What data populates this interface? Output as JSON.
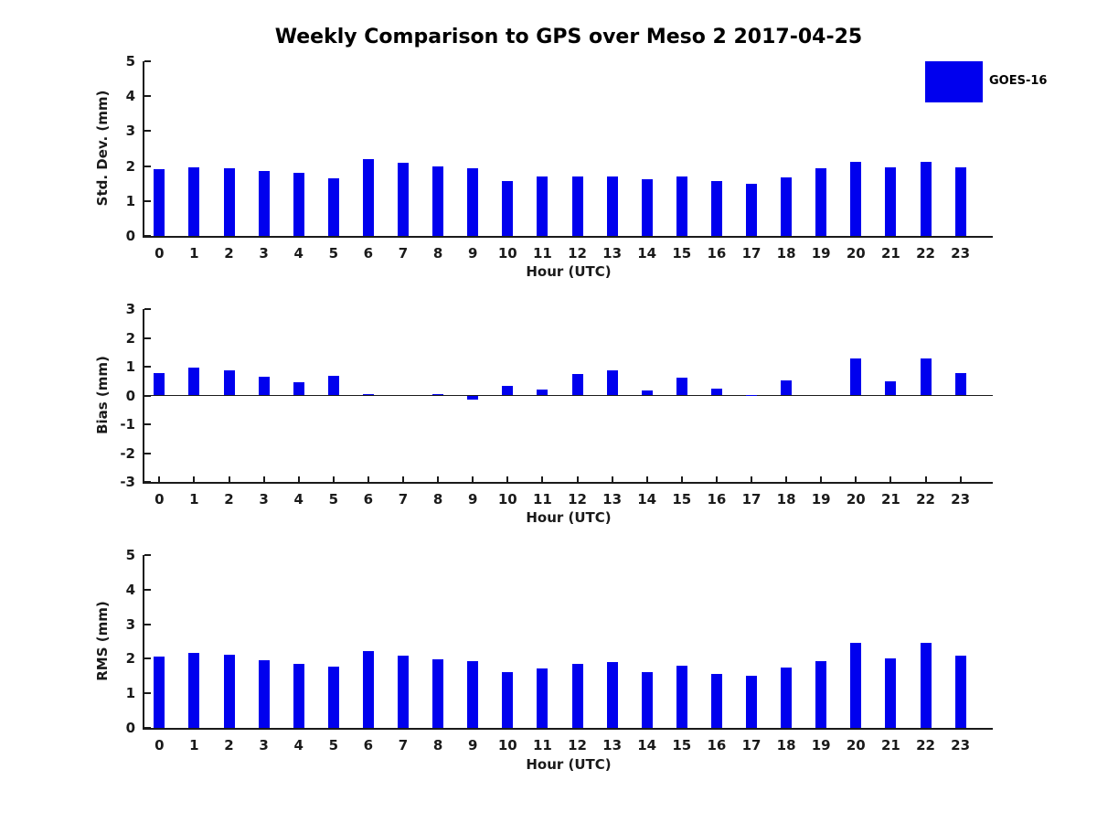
{
  "page": {
    "title": "Weekly Comparison to GPS over Meso 2 2017-04-25"
  },
  "legend": {
    "label": "GOES-16",
    "swatch_color": "#0000EE"
  },
  "chart_data": [
    {
      "id": "std-dev",
      "type": "bar",
      "series_name": "GOES-16",
      "ylabel": "Std. Dev. (mm)",
      "xlabel": "Hour (UTC)",
      "categories": [
        "0",
        "1",
        "2",
        "3",
        "4",
        "5",
        "6",
        "7",
        "8",
        "9",
        "10",
        "11",
        "12",
        "13",
        "14",
        "15",
        "16",
        "17",
        "18",
        "19",
        "20",
        "21",
        "22",
        "23"
      ],
      "values": [
        1.9,
        1.97,
        1.94,
        1.86,
        1.8,
        1.65,
        2.2,
        2.09,
        1.98,
        1.93,
        1.57,
        1.7,
        1.7,
        1.7,
        1.61,
        1.7,
        1.56,
        1.49,
        1.67,
        1.93,
        2.11,
        1.96,
        2.11,
        1.96
      ],
      "ylim": [
        0,
        5
      ],
      "yticks": [
        0,
        1,
        2,
        3,
        4,
        5
      ],
      "bar_color": "#0000EE",
      "grid": false
    },
    {
      "id": "bias",
      "type": "bar",
      "series_name": "GOES-16",
      "ylabel": "Bias (mm)",
      "xlabel": "Hour (UTC)",
      "categories": [
        "0",
        "1",
        "2",
        "3",
        "4",
        "5",
        "6",
        "7",
        "8",
        "9",
        "10",
        "11",
        "12",
        "13",
        "14",
        "15",
        "16",
        "17",
        "18",
        "19",
        "20",
        "21",
        "22",
        "23"
      ],
      "values": [
        0.79,
        0.97,
        0.87,
        0.64,
        0.45,
        0.67,
        0.05,
        0.0,
        0.04,
        -0.15,
        0.33,
        0.22,
        0.76,
        0.86,
        0.17,
        0.61,
        0.24,
        0.02,
        0.52,
        0.0,
        1.27,
        0.48,
        1.3,
        0.79
      ],
      "ylim": [
        -3,
        3
      ],
      "yticks": [
        -3,
        -2,
        -1,
        0,
        1,
        2,
        3
      ],
      "bar_color": "#0000EE",
      "grid": false
    },
    {
      "id": "rms",
      "type": "bar",
      "series_name": "GOES-16",
      "ylabel": "RMS (mm)",
      "xlabel": "Hour (UTC)",
      "categories": [
        "0",
        "1",
        "2",
        "3",
        "4",
        "5",
        "6",
        "7",
        "8",
        "9",
        "10",
        "11",
        "12",
        "13",
        "14",
        "15",
        "16",
        "17",
        "18",
        "19",
        "20",
        "21",
        "22",
        "23"
      ],
      "values": [
        2.06,
        2.18,
        2.11,
        1.97,
        1.86,
        1.77,
        2.21,
        2.08,
        1.98,
        1.94,
        1.61,
        1.71,
        1.86,
        1.9,
        1.62,
        1.79,
        1.57,
        1.5,
        1.74,
        1.92,
        2.46,
        2.02,
        2.47,
        2.1
      ],
      "ylim": [
        0,
        5
      ],
      "yticks": [
        0,
        1,
        2,
        3,
        4,
        5
      ],
      "bar_color": "#0000EE",
      "grid": false
    }
  ]
}
